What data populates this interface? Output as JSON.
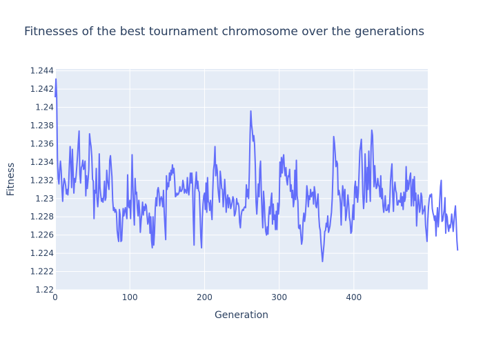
{
  "chart_data": {
    "type": "line",
    "title": "Fitnesses of the best tournament chromosome over the generations",
    "xlabel": "Generation",
    "ylabel": "Fitness",
    "xlim": [
      0,
      499
    ],
    "ylim": [
      1.22,
      1.2442
    ],
    "grid": true,
    "line_color": "#636efa",
    "plot_bg": "#e5ecf6",
    "x_ticks": [
      0,
      100,
      200,
      300,
      400
    ],
    "x_tick_labels": [
      "0",
      "100",
      "200",
      "300",
      "400"
    ],
    "y_ticks": [
      1.22,
      1.222,
      1.224,
      1.226,
      1.228,
      1.23,
      1.232,
      1.234,
      1.236,
      1.238,
      1.24,
      1.242,
      1.244
    ],
    "y_tick_labels": [
      "1.22",
      "1.222",
      "1.224",
      "1.226",
      "1.228",
      "1.23",
      "1.232",
      "1.234",
      "1.236",
      "1.238",
      "1.24",
      "1.242",
      "1.244"
    ],
    "series": [
      {
        "x_start": 0,
        "x_step": 1,
        "y": [
          1.2411,
          1.2431,
          1.2412,
          1.2344,
          1.2322,
          1.2316,
          1.2331,
          1.2341,
          1.2331,
          1.2312,
          1.2297,
          1.2314,
          1.2322,
          1.2319,
          1.2314,
          1.2305,
          1.231,
          1.2304,
          1.2316,
          1.2337,
          1.2357,
          1.2338,
          1.2312,
          1.2354,
          1.233,
          1.2306,
          1.2322,
          1.2318,
          1.2325,
          1.2336,
          1.2348,
          1.2362,
          1.2374,
          1.2327,
          1.2317,
          1.2334,
          1.2336,
          1.2342,
          1.2332,
          1.2334,
          1.2341,
          1.2303,
          1.2325,
          1.2311,
          1.232,
          1.2332,
          1.2371,
          1.2363,
          1.2357,
          1.2346,
          1.2321,
          1.2319,
          1.2278,
          1.2309,
          1.2306,
          1.2333,
          1.23,
          1.2291,
          1.2302,
          1.2349,
          1.2312,
          1.2304,
          1.2297,
          1.23,
          1.2296,
          1.2303,
          1.2319,
          1.2298,
          1.2301,
          1.2331,
          1.232,
          1.2315,
          1.231,
          1.2342,
          1.2347,
          1.2335,
          1.2324,
          1.2298,
          1.2287,
          1.229,
          1.2285,
          1.2288,
          1.2285,
          1.2265,
          1.2258,
          1.2253,
          1.2288,
          1.2282,
          1.2253,
          1.2254,
          1.2272,
          1.2289,
          1.2281,
          1.2286,
          1.229,
          1.2284,
          1.2278,
          1.2326,
          1.2292,
          1.229,
          1.2298,
          1.2278,
          1.2305,
          1.2348,
          1.2314,
          1.2287,
          1.2271,
          1.2322,
          1.2305,
          1.2307,
          1.229,
          1.2281,
          1.2298,
          1.2287,
          1.2263,
          1.2275,
          1.2284,
          1.2296,
          1.2282,
          1.2291,
          1.2287,
          1.2294,
          1.2292,
          1.2281,
          1.2272,
          1.2276,
          1.2284,
          1.2262,
          1.228,
          1.2254,
          1.2246,
          1.228,
          1.2249,
          1.2263,
          1.2289,
          1.2301,
          1.2292,
          1.2309,
          1.2312,
          1.2306,
          1.2292,
          1.2299,
          1.2302,
          1.2299,
          1.2291,
          1.2309,
          1.2285,
          1.2269,
          1.2255,
          1.2325,
          1.231,
          1.2317,
          1.2313,
          1.2328,
          1.232,
          1.2331,
          1.2326,
          1.2337,
          1.2328,
          1.2333,
          1.232,
          1.2302,
          1.2303,
          1.2306,
          1.2304,
          1.2305,
          1.2307,
          1.2313,
          1.2308,
          1.2308,
          1.231,
          1.232,
          1.2315,
          1.2306,
          1.231,
          1.2308,
          1.2306,
          1.2323,
          1.2309,
          1.2304,
          1.2314,
          1.2328,
          1.2317,
          1.2328,
          1.2315,
          1.2276,
          1.2249,
          1.2308,
          1.2318,
          1.2329,
          1.2311,
          1.2319,
          1.2309,
          1.2307,
          1.2284,
          1.2258,
          1.2246,
          1.2279,
          1.2294,
          1.2303,
          1.2306,
          1.2288,
          1.2317,
          1.2285,
          1.2323,
          1.2297,
          1.2295,
          1.2287,
          1.2298,
          1.2287,
          1.2277,
          1.2308,
          1.2331,
          1.2338,
          1.2357,
          1.2325,
          1.2337,
          1.2331,
          1.2312,
          1.2303,
          1.2296,
          1.233,
          1.2322,
          1.2311,
          1.231,
          1.2291,
          1.2303,
          1.2321,
          1.2306,
          1.2285,
          1.2298,
          1.2304,
          1.229,
          1.2301,
          1.2298,
          1.2289,
          1.2292,
          1.2296,
          1.2302,
          1.2299,
          1.2281,
          1.2283,
          1.2288,
          1.23,
          1.2294,
          1.2295,
          1.2291,
          1.2274,
          1.2268,
          1.2281,
          1.2286,
          1.2288,
          1.2287,
          1.229,
          1.2291,
          1.229,
          1.2315,
          1.2302,
          1.231,
          1.23,
          1.2329,
          1.237,
          1.2396,
          1.2381,
          1.2374,
          1.2363,
          1.2369,
          1.2359,
          1.2336,
          1.2296,
          1.2283,
          1.2299,
          1.2316,
          1.2302,
          1.2332,
          1.2341,
          1.2308,
          1.2285,
          1.2268,
          1.2308,
          1.2296,
          1.2275,
          1.2264,
          1.226,
          1.2269,
          1.2261,
          1.2281,
          1.2291,
          1.2283,
          1.2299,
          1.2306,
          1.2272,
          1.2294,
          1.2277,
          1.2282,
          1.2266,
          1.2286,
          1.2266,
          1.2295,
          1.2283,
          1.2294,
          1.234,
          1.2324,
          1.2345,
          1.2328,
          1.2343,
          1.2348,
          1.2332,
          1.2325,
          1.2334,
          1.232,
          1.2315,
          1.2325,
          1.2324,
          1.2332,
          1.2308,
          1.2315,
          1.2301,
          1.2309,
          1.2291,
          1.2298,
          1.2331,
          1.2299,
          1.2342,
          1.2303,
          1.2297,
          1.2268,
          1.2267,
          1.2271,
          1.226,
          1.225,
          1.2255,
          1.2276,
          1.2284,
          1.2275,
          1.2282,
          1.2295,
          1.2314,
          1.2307,
          1.2291,
          1.2303,
          1.2299,
          1.231,
          1.2302,
          1.2306,
          1.2307,
          1.2294,
          1.2313,
          1.2307,
          1.2292,
          1.229,
          1.2298,
          1.2305,
          1.2281,
          1.2269,
          1.2265,
          1.2251,
          1.2241,
          1.2231,
          1.2241,
          1.225,
          1.2264,
          1.2265,
          1.2273,
          1.2269,
          1.2281,
          1.2263,
          1.2266,
          1.227,
          1.2278,
          1.2285,
          1.23,
          1.2327,
          1.2368,
          1.2361,
          1.2349,
          1.2335,
          1.2341,
          1.2338,
          1.2304,
          1.2309,
          1.2305,
          1.2295,
          1.2271,
          1.2298,
          1.2314,
          1.2307,
          1.2292,
          1.231,
          1.2276,
          1.2282,
          1.2292,
          1.2304,
          1.2294,
          1.2279,
          1.2275,
          1.2262,
          1.2264,
          1.2279,
          1.2293,
          1.2277,
          1.2312,
          1.2319,
          1.2301,
          1.2313,
          1.2296,
          1.2307,
          1.2329,
          1.2352,
          1.2358,
          1.2365,
          1.2338,
          1.2305,
          1.2289,
          1.2301,
          1.2349,
          1.2326,
          1.2296,
          1.2334,
          1.231,
          1.2352,
          1.2319,
          1.2297,
          1.2356,
          1.2375,
          1.2369,
          1.234,
          1.2313,
          1.2336,
          1.2319,
          1.2311,
          1.2313,
          1.2322,
          1.2315,
          1.2313,
          1.2302,
          1.2325,
          1.23,
          1.2311,
          1.2292,
          1.2285,
          1.2294,
          1.2303,
          1.2287,
          1.2287,
          1.2288,
          1.2293,
          1.2285,
          1.2296,
          1.2318,
          1.233,
          1.2338,
          1.2304,
          1.2286,
          1.231,
          1.2318,
          1.2309,
          1.2306,
          1.2293,
          1.2293,
          1.2298,
          1.2297,
          1.2296,
          1.2306,
          1.2292,
          1.2302,
          1.2288,
          1.2307,
          1.2297,
          1.2301,
          1.2335,
          1.2308,
          1.232,
          1.231,
          1.2316,
          1.2324,
          1.2328,
          1.2292,
          1.2307,
          1.2321,
          1.2292,
          1.2324,
          1.2298,
          1.2306,
          1.227,
          1.2289,
          1.2304,
          1.2296,
          1.2285,
          1.229,
          1.2306,
          1.2302,
          1.2283,
          1.2286,
          1.2288,
          1.2292,
          1.2271,
          1.2262,
          1.2253,
          1.2277,
          1.2291,
          1.23,
          1.2304,
          1.2302,
          1.2305,
          1.2289,
          1.2284,
          1.2281,
          1.2276,
          1.2281,
          1.2259,
          1.2278,
          1.229,
          1.2269,
          1.2281,
          1.2298,
          1.2313,
          1.232,
          1.2275,
          1.2276,
          1.2282,
          1.2288,
          1.2301,
          1.2262,
          1.2283,
          1.228,
          1.2269,
          1.2264,
          1.2271,
          1.2268,
          1.2273,
          1.2283,
          1.2275,
          1.2264,
          1.2274,
          1.2285,
          1.2292,
          1.2275,
          1.2254,
          1.2243
        ]
      }
    ]
  }
}
